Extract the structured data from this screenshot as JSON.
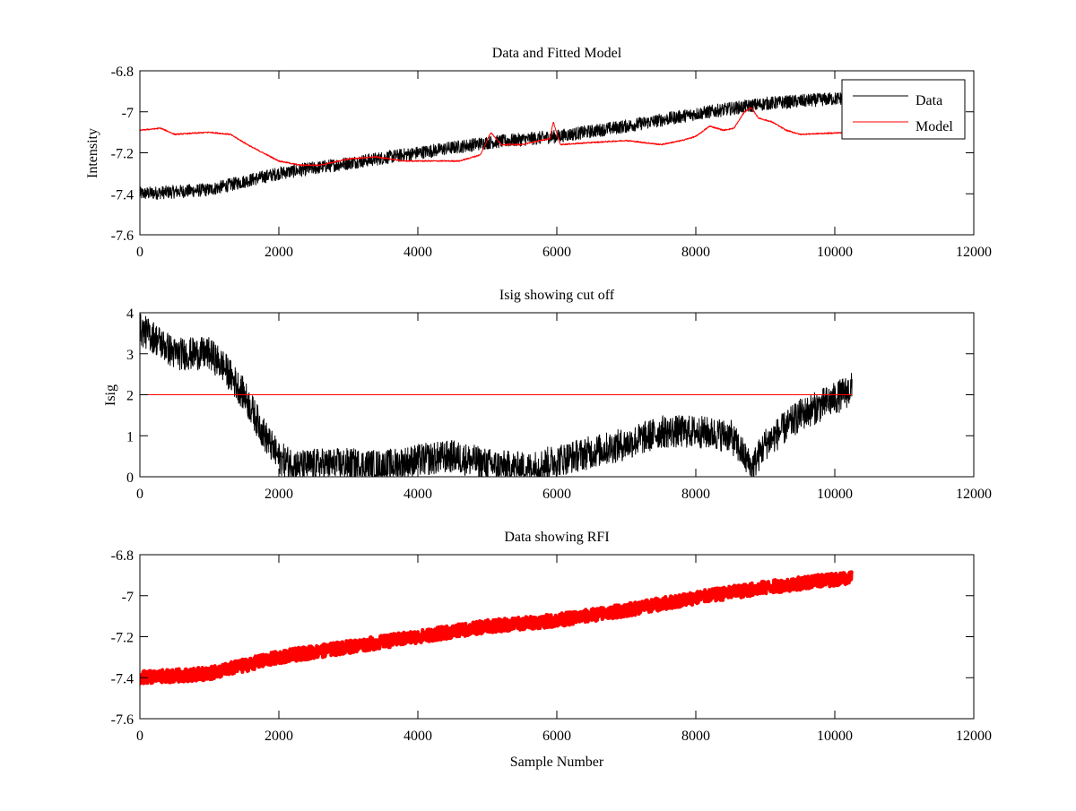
{
  "chart_data": [
    {
      "type": "line",
      "title": "Data and Fitted Model",
      "xlabel": "",
      "ylabel": "Intensity",
      "xlim": [
        0,
        12000
      ],
      "ylim": [
        -7.6,
        -6.8
      ],
      "xticks": [
        0,
        2000,
        4000,
        6000,
        8000,
        10000,
        12000
      ],
      "yticks": [
        -7.6,
        -7.4,
        -7.2,
        -7,
        -6.8
      ],
      "ytick_labels": [
        "-7.6",
        "-7.4",
        "-7.2",
        "-7",
        "-6.8"
      ],
      "legend": {
        "placement": "top-right",
        "entries": [
          "Data",
          "Model"
        ]
      },
      "series": [
        {
          "name": "Data",
          "color": "#000000",
          "noise": 0.02,
          "points": [
            [
              0,
              -7.4
            ],
            [
              1000,
              -7.38
            ],
            [
              2000,
              -7.3
            ],
            [
              3000,
              -7.25
            ],
            [
              4000,
              -7.2
            ],
            [
              5000,
              -7.15
            ],
            [
              6000,
              -7.12
            ],
            [
              7000,
              -7.07
            ],
            [
              8000,
              -7.01
            ],
            [
              9000,
              -6.96
            ],
            [
              10250,
              -6.93
            ]
          ]
        },
        {
          "name": "Model",
          "color": "#ff0000",
          "noise": 0.002,
          "points": [
            [
              0,
              -7.09
            ],
            [
              300,
              -7.08
            ],
            [
              500,
              -7.11
            ],
            [
              1000,
              -7.1
            ],
            [
              1300,
              -7.11
            ],
            [
              1600,
              -7.17
            ],
            [
              2000,
              -7.24
            ],
            [
              2300,
              -7.26
            ],
            [
              2600,
              -7.26
            ],
            [
              3000,
              -7.23
            ],
            [
              3400,
              -7.22
            ],
            [
              3800,
              -7.24
            ],
            [
              4600,
              -7.24
            ],
            [
              4900,
              -7.21
            ],
            [
              5050,
              -7.1
            ],
            [
              5200,
              -7.16
            ],
            [
              5500,
              -7.16
            ],
            [
              5900,
              -7.13
            ],
            [
              5950,
              -7.05
            ],
            [
              6050,
              -7.16
            ],
            [
              6500,
              -7.15
            ],
            [
              7000,
              -7.14
            ],
            [
              7500,
              -7.16
            ],
            [
              7800,
              -7.14
            ],
            [
              8000,
              -7.12
            ],
            [
              8200,
              -7.07
            ],
            [
              8400,
              -7.09
            ],
            [
              8550,
              -7.08
            ],
            [
              8700,
              -7.0
            ],
            [
              8800,
              -6.98
            ],
            [
              8900,
              -7.03
            ],
            [
              9100,
              -7.05
            ],
            [
              9300,
              -7.09
            ],
            [
              9500,
              -7.11
            ],
            [
              10250,
              -7.1
            ]
          ]
        }
      ]
    },
    {
      "type": "line",
      "title": "Isig showing cut off",
      "xlabel": "",
      "ylabel": "Isig",
      "xlim": [
        0,
        12000
      ],
      "ylim": [
        0,
        4
      ],
      "xticks": [
        0,
        2000,
        4000,
        6000,
        8000,
        10000,
        12000
      ],
      "yticks": [
        0,
        1,
        2,
        3,
        4
      ],
      "ytick_labels": [
        "0",
        "1",
        "2",
        "3",
        "4"
      ],
      "series": [
        {
          "name": "Isig",
          "color": "#000000",
          "noise": 0.25,
          "points": [
            [
              0,
              3.6
            ],
            [
              200,
              3.4
            ],
            [
              500,
              3.0
            ],
            [
              800,
              3.0
            ],
            [
              1000,
              3.0
            ],
            [
              1200,
              2.7
            ],
            [
              1500,
              2.0
            ],
            [
              1800,
              1.0
            ],
            [
              2000,
              0.45
            ],
            [
              2300,
              0.25
            ],
            [
              2600,
              0.3
            ],
            [
              3000,
              0.3
            ],
            [
              3500,
              0.25
            ],
            [
              4000,
              0.4
            ],
            [
              4500,
              0.5
            ],
            [
              5000,
              0.3
            ],
            [
              5200,
              0.25
            ],
            [
              5600,
              0.2
            ],
            [
              6000,
              0.4
            ],
            [
              6500,
              0.6
            ],
            [
              7000,
              0.8
            ],
            [
              7500,
              1.1
            ],
            [
              8000,
              1.1
            ],
            [
              8500,
              1.0
            ],
            [
              8700,
              0.5
            ],
            [
              8800,
              0.2
            ],
            [
              9000,
              0.8
            ],
            [
              9500,
              1.5
            ],
            [
              10000,
              1.9
            ],
            [
              10250,
              2.15
            ]
          ]
        },
        {
          "name": "Cut off",
          "color": "#ff0000",
          "noise": 0,
          "points": [
            [
              0,
              2
            ],
            [
              10250,
              2
            ]
          ]
        }
      ]
    },
    {
      "type": "line",
      "title": "Data showing RFI",
      "xlabel": "Sample Number",
      "ylabel": "",
      "xlim": [
        0,
        12000
      ],
      "ylim": [
        -7.6,
        -6.8
      ],
      "xticks": [
        0,
        2000,
        4000,
        6000,
        8000,
        10000,
        12000
      ],
      "yticks": [
        -7.6,
        -7.4,
        -7.2,
        -7,
        -6.8
      ],
      "ytick_labels": [
        "-7.6",
        "-7.4",
        "-7.2",
        "-7",
        "-6.8"
      ],
      "series": [
        {
          "name": "Data",
          "color": "#ff0000",
          "noise": 0.02,
          "marker": "+",
          "points": [
            [
              0,
              -7.4
            ],
            [
              1000,
              -7.38
            ],
            [
              2000,
              -7.3
            ],
            [
              3000,
              -7.25
            ],
            [
              4000,
              -7.2
            ],
            [
              5000,
              -7.15
            ],
            [
              6000,
              -7.12
            ],
            [
              7000,
              -7.07
            ],
            [
              8000,
              -7.01
            ],
            [
              9000,
              -6.96
            ],
            [
              10250,
              -6.91
            ]
          ]
        }
      ]
    }
  ]
}
